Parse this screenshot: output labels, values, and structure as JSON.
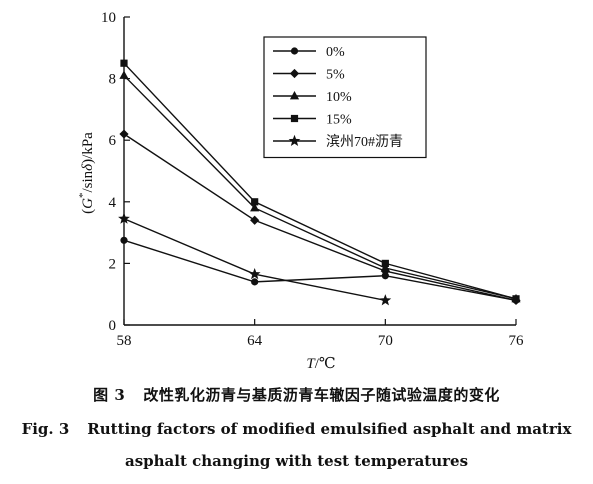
{
  "chart_data": {
    "type": "line",
    "x": [
      58,
      64,
      70,
      76
    ],
    "xlim": [
      58,
      76
    ],
    "ylim": [
      0,
      10
    ],
    "xticks": [
      58,
      64,
      70,
      76
    ],
    "yticks": [
      0,
      2,
      4,
      6,
      8,
      10
    ],
    "xlabel": {
      "italic": "T",
      "rest": "/℃"
    },
    "ylabel": {
      "open": "(",
      "G": "G",
      "sup": "*",
      "sin": "/sin",
      "delta": "δ",
      "close": ")/kPa"
    },
    "legend_position": "top-right",
    "grid": false,
    "series": [
      {
        "name": "0%",
        "marker": "circle",
        "values": [
          2.75,
          1.4,
          1.6,
          0.8
        ]
      },
      {
        "name": "5%",
        "marker": "diamond",
        "values": [
          6.2,
          3.4,
          1.75,
          0.8
        ]
      },
      {
        "name": "10%",
        "marker": "triangle",
        "values": [
          8.1,
          3.8,
          1.85,
          0.85
        ]
      },
      {
        "name": "15%",
        "marker": "square",
        "values": [
          8.5,
          4.0,
          2.0,
          0.85
        ]
      },
      {
        "name": "滨州70#沥青",
        "marker": "star",
        "values": [
          3.45,
          1.65,
          0.8,
          null
        ]
      }
    ]
  },
  "caption": {
    "cn_label": "图 3",
    "cn_text": "改性乳化沥青与基质沥青车辙因子随试验温度的变化",
    "en_label": "Fig. 3",
    "en_line1": "Rutting factors of modified emulsified asphalt and matrix",
    "en_line2": "asphalt changing with test temperatures"
  }
}
